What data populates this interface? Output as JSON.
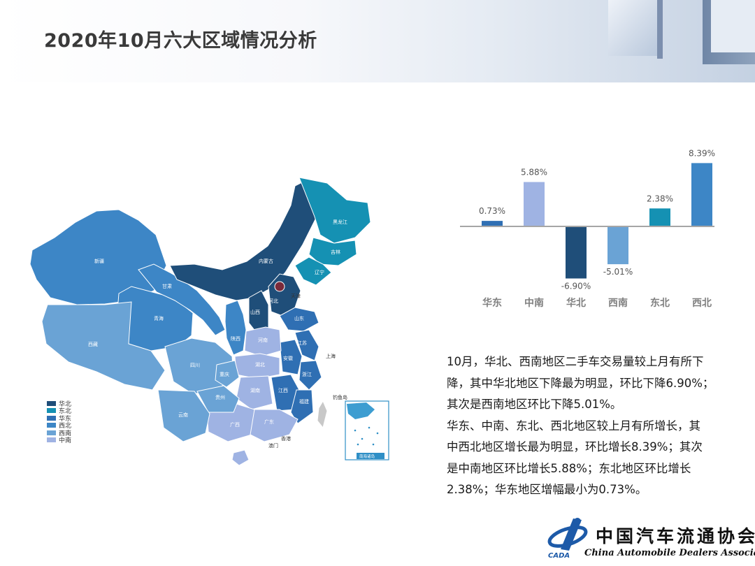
{
  "header": {
    "title": "2020年10月六大区域情况分析"
  },
  "map": {
    "legend": [
      {
        "label": "华北",
        "color": "#1f4e79"
      },
      {
        "label": "东北",
        "color": "#1591b3"
      },
      {
        "label": "华东",
        "color": "#2f6fb3"
      },
      {
        "label": "西北",
        "color": "#3d86c6"
      },
      {
        "label": "西南",
        "color": "#6aa3d5"
      },
      {
        "label": "中南",
        "color": "#9fb3e3"
      }
    ],
    "province_labels": [
      {
        "key": "xinjiang",
        "text": "新疆"
      },
      {
        "key": "xizang",
        "text": "西藏"
      },
      {
        "key": "qinghai",
        "text": "青海"
      },
      {
        "key": "gansu",
        "text": "甘肃"
      },
      {
        "key": "neimenggu",
        "text": "内蒙古"
      },
      {
        "key": "heilongjiang",
        "text": "黑龙江"
      },
      {
        "key": "jilin",
        "text": "吉林"
      },
      {
        "key": "liaoning",
        "text": "辽宁"
      },
      {
        "key": "hebei",
        "text": "河北"
      },
      {
        "key": "tianjin",
        "text": "天津"
      },
      {
        "key": "shanxi",
        "text": "山西"
      },
      {
        "key": "shandong",
        "text": "山东"
      },
      {
        "key": "shaanxi",
        "text": "陕西"
      },
      {
        "key": "henan",
        "text": "河南"
      },
      {
        "key": "jiangsu",
        "text": "江苏"
      },
      {
        "key": "anhui",
        "text": "安徽"
      },
      {
        "key": "shanghai",
        "text": "上海"
      },
      {
        "key": "hubei",
        "text": "湖北"
      },
      {
        "key": "sichuan",
        "text": "四川"
      },
      {
        "key": "chongqing",
        "text": "重庆"
      },
      {
        "key": "zhejiang",
        "text": "浙江"
      },
      {
        "key": "hunan",
        "text": "湖南"
      },
      {
        "key": "jiangxi",
        "text": "江西"
      },
      {
        "key": "guizhou",
        "text": "贵州"
      },
      {
        "key": "fujian",
        "text": "福建"
      },
      {
        "key": "yunnan",
        "text": "云南"
      },
      {
        "key": "guangxi",
        "text": "广西"
      },
      {
        "key": "guangdong",
        "text": "广东"
      },
      {
        "key": "aomen",
        "text": "澳门"
      },
      {
        "key": "xianggang",
        "text": "香港"
      },
      {
        "key": "diaoyudao",
        "text": "钓鱼岛"
      },
      {
        "key": "nanhai",
        "text": "南海诸岛"
      }
    ]
  },
  "chart_data": {
    "type": "bar",
    "categories": [
      "华东",
      "中南",
      "华北",
      "西南",
      "东北",
      "西北"
    ],
    "values": [
      0.73,
      5.88,
      -6.9,
      -5.01,
      2.38,
      8.39
    ],
    "value_labels": [
      "0.73%",
      "5.88%",
      "-6.90%",
      "-5.01%",
      "2.38%",
      "8.39%"
    ],
    "colors": [
      "#2f6fb3",
      "#9fb3e3",
      "#1f4e79",
      "#6aa3d5",
      "#1591b3",
      "#3d86c6"
    ],
    "unit": "%",
    "ylim": [
      -6.9,
      8.39
    ],
    "grid": false,
    "legend": "none"
  },
  "analysis": {
    "lines": [
      "10月，华北、西南地区二手车交易量较上月有所下",
      "降，其中华北地区下降最为明显，环比下降6.90%；",
      "其次是西南地区环比下降5.01%。",
      "华东、中南、东北、西北地区较上月有所增长，其",
      "中西北地区增长最为明显，环比增长8.39%；其次",
      "是中南地区环比增长5.88%；东北地区环比增长",
      "2.38%；华东地区增幅最小为0.73%。"
    ]
  },
  "logo": {
    "name_cn": "中国汽车流通协会",
    "name_en": "China Automobile Dealers Association",
    "abbr": "CADA"
  }
}
